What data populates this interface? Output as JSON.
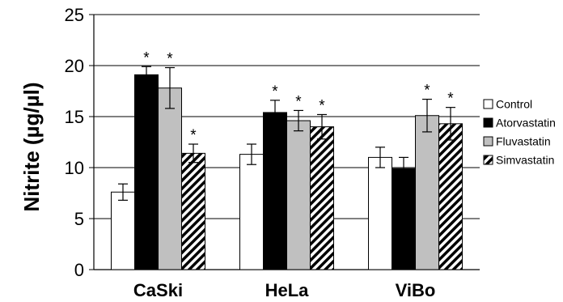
{
  "chart_data": {
    "type": "bar",
    "title": "",
    "xlabel": "",
    "ylabel": "Nitrite (µg/µl)",
    "ylim": [
      0,
      25
    ],
    "yticks": [
      "0",
      "5",
      "10",
      "15",
      "20",
      "25"
    ],
    "categories": [
      "CaSki",
      "HeLa",
      "ViBo"
    ],
    "grid": "horizontal",
    "legend_position": "right",
    "significance_marker": "*",
    "series": [
      {
        "name": "Control",
        "fill": "#ffffff",
        "pattern": "solid",
        "values": [
          7.6,
          11.3,
          11.0
        ],
        "errors": [
          0.8,
          1.0,
          1.0
        ],
        "significant": [
          false,
          false,
          false
        ]
      },
      {
        "name": "Atorvastatin",
        "fill": "#000000",
        "pattern": "solid",
        "values": [
          19.1,
          15.4,
          9.9
        ],
        "errors": [
          0.8,
          1.2,
          1.1
        ],
        "significant": [
          true,
          true,
          false
        ]
      },
      {
        "name": "Fluvastatin",
        "fill": "#c0c0c0",
        "pattern": "solid",
        "values": [
          17.8,
          14.6,
          15.1
        ],
        "errors": [
          2.0,
          1.0,
          1.6
        ],
        "significant": [
          true,
          true,
          true
        ]
      },
      {
        "name": "Simvastatin",
        "fill": "#ffffff",
        "pattern": "diagonal-hatch",
        "values": [
          11.4,
          14.0,
          14.3
        ],
        "errors": [
          0.9,
          1.2,
          1.6
        ],
        "significant": [
          true,
          true,
          true
        ]
      }
    ]
  }
}
